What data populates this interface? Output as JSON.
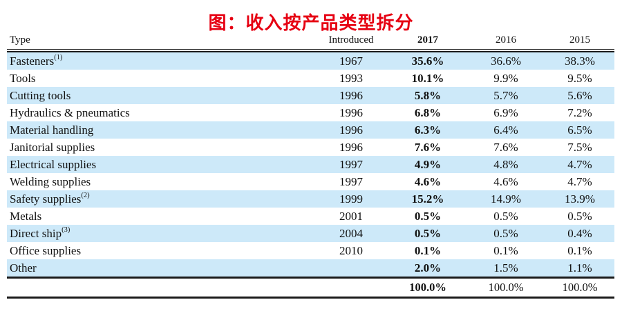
{
  "figure": {
    "title": "图：收入按产品类型拆分"
  },
  "colors": {
    "title_red": "#e60012",
    "row_highlight_blue": "#cde9f9",
    "rule_black": "#1a1a1a",
    "text_black": "#111111"
  },
  "chart_data": {
    "type": "table",
    "title": "图：收入按产品类型拆分",
    "columns": [
      "Type",
      "Introduced",
      "2017",
      "2016",
      "2015"
    ],
    "column_emphasis": "2017 column is bold",
    "rows": [
      {
        "type": "Fasteners",
        "sup": "(1)",
        "introduced": "1967",
        "y2017": "35.6%",
        "y2016": "36.6%",
        "y2015": "38.3%"
      },
      {
        "type": "Tools",
        "introduced": "1993",
        "y2017": "10.1%",
        "y2016": "9.9%",
        "y2015": "9.5%"
      },
      {
        "type": "Cutting tools",
        "introduced": "1996",
        "y2017": "5.8%",
        "y2016": "5.7%",
        "y2015": "5.6%"
      },
      {
        "type": "Hydraulics & pneumatics",
        "introduced": "1996",
        "y2017": "6.8%",
        "y2016": "6.9%",
        "y2015": "7.2%"
      },
      {
        "type": "Material handling",
        "introduced": "1996",
        "y2017": "6.3%",
        "y2016": "6.4%",
        "y2015": "6.5%"
      },
      {
        "type": "Janitorial supplies",
        "introduced": "1996",
        "y2017": "7.6%",
        "y2016": "7.6%",
        "y2015": "7.5%"
      },
      {
        "type": "Electrical supplies",
        "introduced": "1997",
        "y2017": "4.9%",
        "y2016": "4.8%",
        "y2015": "4.7%"
      },
      {
        "type": "Welding supplies",
        "introduced": "1997",
        "y2017": "4.6%",
        "y2016": "4.6%",
        "y2015": "4.7%"
      },
      {
        "type": "Safety supplies",
        "sup": "(2)",
        "introduced": "1999",
        "y2017": "15.2%",
        "y2016": "14.9%",
        "y2015": "13.9%"
      },
      {
        "type": "Metals",
        "introduced": "2001",
        "y2017": "0.5%",
        "y2016": "0.5%",
        "y2015": "0.5%"
      },
      {
        "type": "Direct ship",
        "sup": "(3)",
        "introduced": "2004",
        "y2017": "0.5%",
        "y2016": "0.5%",
        "y2015": "0.4%"
      },
      {
        "type": "Office supplies",
        "introduced": "2010",
        "y2017": "0.1%",
        "y2016": "0.1%",
        "y2015": "0.1%"
      },
      {
        "type": "Other",
        "introduced": "",
        "y2017": "2.0%",
        "y2016": "1.5%",
        "y2015": "1.1%"
      }
    ],
    "total": {
      "y2017": "100.0%",
      "y2016": "100.0%",
      "y2015": "100.0%"
    }
  }
}
